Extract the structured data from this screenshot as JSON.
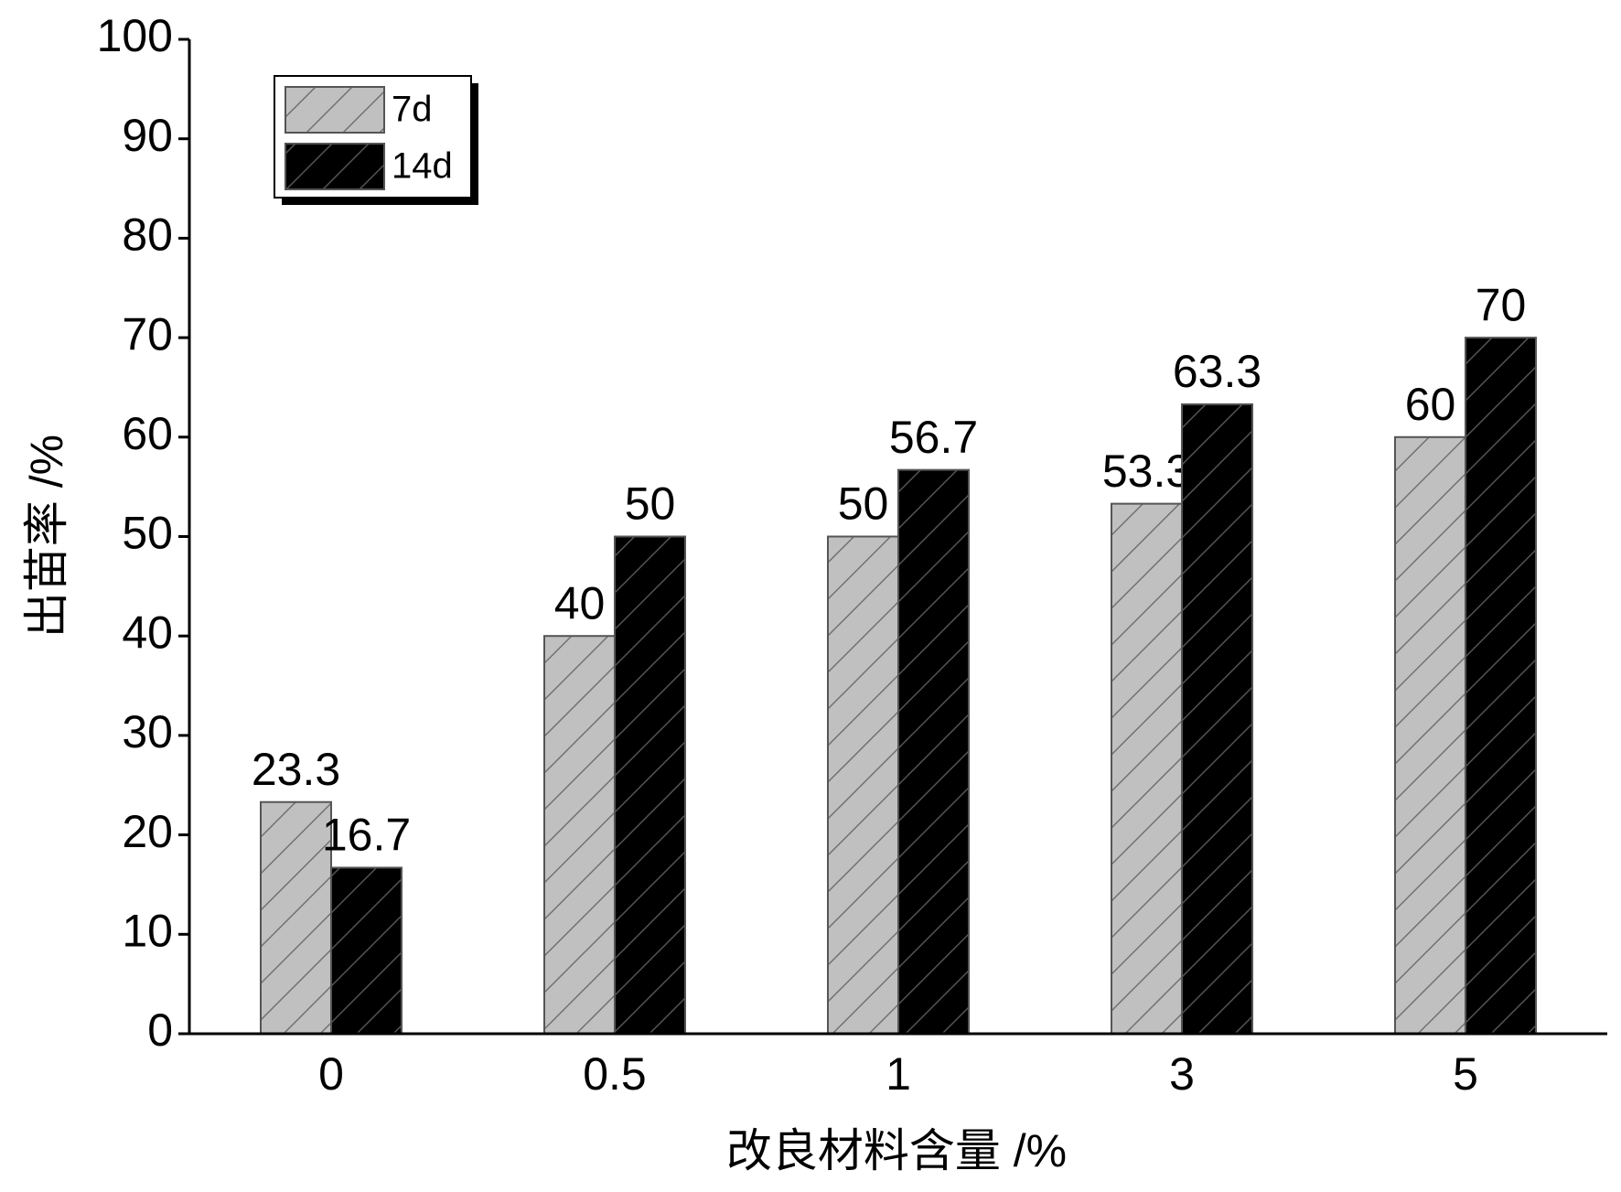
{
  "chart_data": {
    "type": "bar",
    "x_label": "改良材料含量 /%",
    "y_label": "出苗率 /%",
    "categories": [
      "0",
      "0.5",
      "1",
      "3",
      "5"
    ],
    "series": [
      {
        "name": "7d",
        "color": "#c0c0c0",
        "values": [
          23.3,
          40,
          50,
          53.3,
          60
        ]
      },
      {
        "name": "14d",
        "color": "#000000",
        "values": [
          16.7,
          50,
          56.7,
          63.3,
          70
        ]
      }
    ],
    "ylim": [
      0,
      100
    ],
    "yticks": [
      0,
      10,
      20,
      30,
      40,
      50,
      60,
      70,
      80,
      90,
      100
    ],
    "legend": "upper left"
  }
}
